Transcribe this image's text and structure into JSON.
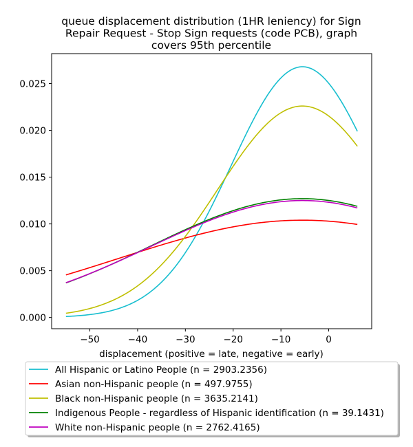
{
  "chart_data": {
    "type": "line",
    "title": "queue displacement distribution (1HR leniency) for Sign Repair Request - Stop Sign  requests (code PCB), graph covers 95th percentile",
    "title_lines": [
      "queue displacement distribution (1HR leniency) for Sign",
      "Repair Request - Stop Sign  requests (code PCB), graph",
      "covers 95th percentile"
    ],
    "xlabel": "displacement (positive = late, negative = early)",
    "ylabel": "",
    "xlim": [
      -58.0,
      9.0
    ],
    "ylim": [
      -0.0012,
      0.0282
    ],
    "xticks": [
      -50,
      -40,
      -30,
      -20,
      -10,
      0
    ],
    "xtick_labels": [
      "−50",
      "−40",
      "−30",
      "−20",
      "−10",
      "0"
    ],
    "yticks": [
      0.0,
      0.005,
      0.01,
      0.015,
      0.02,
      0.025
    ],
    "ytick_labels": [
      "0.000",
      "0.005",
      "0.010",
      "0.015",
      "0.020",
      "0.025"
    ],
    "grid": false,
    "legend_position": "below plot",
    "x_range": [
      -55,
      6
    ],
    "series": [
      {
        "name": "All Hispanic or Latino People (n = 2903.2356)",
        "color": "#17becf",
        "peak_x": -5.5,
        "peak_y": 0.0268,
        "sigma": 14.9
      },
      {
        "name": "Asian non-Hispanic people (n = 497.9755)",
        "color": "#ff0000",
        "peak_x": -5.5,
        "peak_y": 0.0104,
        "sigma": 38.5
      },
      {
        "name": "Black non-Hispanic people (n = 3635.2141)",
        "color": "#bfbf00",
        "peak_x": -5.5,
        "peak_y": 0.0226,
        "sigma": 17.7
      },
      {
        "name": "Indigenous People - regardless of Hispanic identification (n = 39.1431)",
        "color": "#008000",
        "peak_x": -5.5,
        "peak_y": 0.0127,
        "sigma": 31.5
      },
      {
        "name": "White non-Hispanic people (n = 2762.4165)",
        "color": "#bf00bf",
        "peak_x": -5.5,
        "peak_y": 0.0125,
        "sigma": 31.8
      }
    ]
  }
}
